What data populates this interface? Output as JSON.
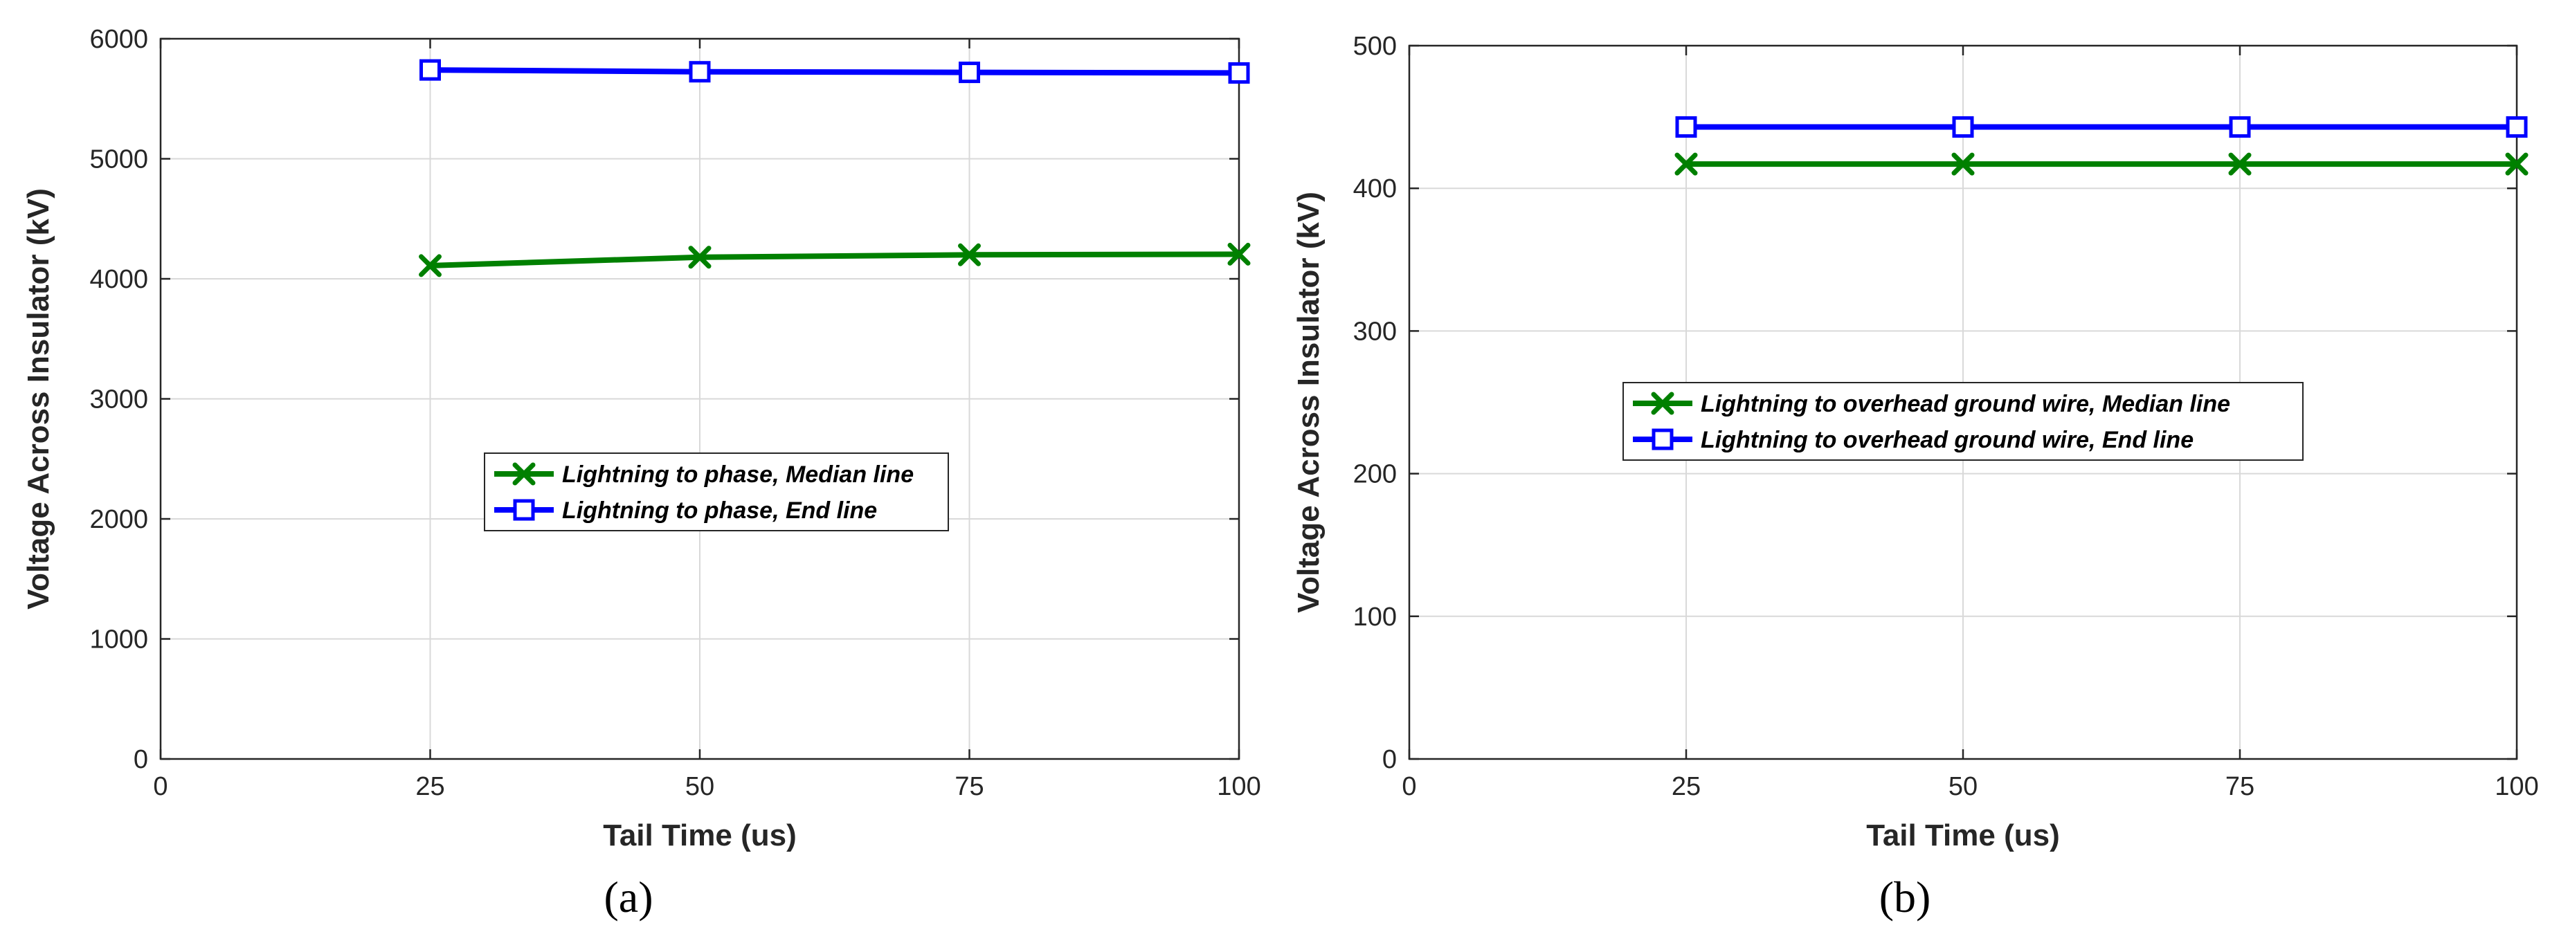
{
  "chart_data": [
    {
      "type": "line",
      "panel_label": "(a)",
      "xlabel": "Tail Time (us)",
      "ylabel": "Voltage Across Insulator (kV)",
      "xlim": [
        0,
        100
      ],
      "ylim": [
        0,
        6000
      ],
      "xticks": [
        0,
        25,
        50,
        75,
        100
      ],
      "yticks": [
        0,
        1000,
        2000,
        3000,
        4000,
        5000,
        6000
      ],
      "grid": true,
      "legend_position": "center",
      "x": [
        25,
        50,
        75,
        100
      ],
      "series": [
        {
          "name": "Lightning to phase, Median line",
          "values": [
            4110,
            4180,
            4200,
            4205
          ],
          "color": "#008000",
          "marker": "x"
        },
        {
          "name": "Lightning to phase, End line",
          "values": [
            5740,
            5725,
            5720,
            5715
          ],
          "color": "#0000ff",
          "marker": "square"
        }
      ]
    },
    {
      "type": "line",
      "panel_label": "(b)",
      "xlabel": "Tail Time (us)",
      "ylabel": "Voltage Across Insulator (kV)",
      "xlim": [
        0,
        100
      ],
      "ylim": [
        0,
        500
      ],
      "xticks": [
        0,
        25,
        50,
        75,
        100
      ],
      "yticks": [
        0,
        100,
        200,
        300,
        400,
        500
      ],
      "grid": true,
      "legend_position": "center",
      "x": [
        25,
        50,
        75,
        100
      ],
      "series": [
        {
          "name": "Lightning to overhead ground wire, Median line",
          "values": [
            417,
            417,
            417,
            417
          ],
          "color": "#008000",
          "marker": "x"
        },
        {
          "name": "Lightning to overhead ground wire, End line",
          "values": [
            443,
            443,
            443,
            443
          ],
          "color": "#0000ff",
          "marker": "square"
        }
      ]
    }
  ]
}
